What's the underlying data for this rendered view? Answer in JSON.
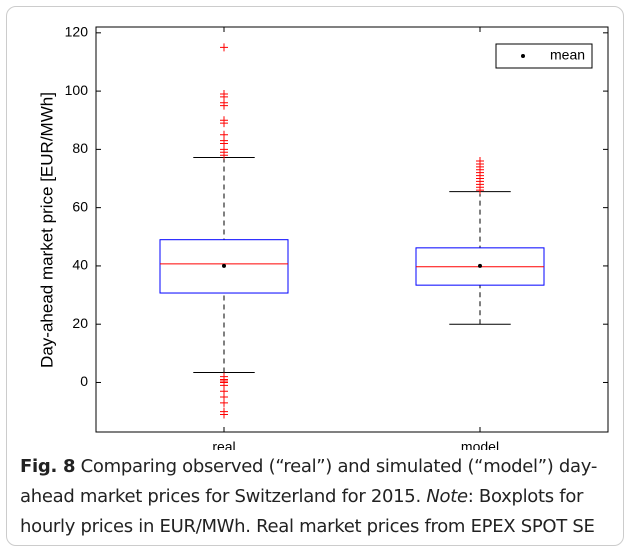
{
  "chart_data": {
    "type": "box",
    "ylabel": "Day-ahead market price [EUR/MWh]",
    "categories": [
      "real",
      "model"
    ],
    "boxes": [
      {
        "whisker_low": 3.4,
        "q1": 30.7,
        "median": 40.7,
        "q3": 49,
        "whisker_high": 77.2,
        "mean": 40,
        "outliers": [
          115,
          99,
          98,
          96,
          95,
          90,
          89,
          85,
          83,
          82,
          80,
          79,
          78,
          2,
          1,
          0.5,
          0,
          -1,
          -3,
          -5,
          -7,
          -10,
          -11
        ]
      },
      {
        "whisker_low": 20,
        "q1": 33.4,
        "median": 39.7,
        "q3": 46.2,
        "whisker_high": 65.5,
        "mean": 40,
        "outliers": [
          66,
          67,
          68,
          69,
          70,
          71,
          72,
          73,
          74,
          75,
          76
        ]
      }
    ],
    "box_color": "#0000ff",
    "median_color": "#ff0000",
    "outlier_color": "#ff0000",
    "whisker_color": "#000000",
    "ylim": [
      -17,
      122
    ],
    "yticks": [
      0,
      20,
      40,
      60,
      80,
      100,
      120
    ],
    "legend": {
      "label": "mean",
      "position": "upper right"
    }
  },
  "caption": {
    "label": "Fig. 8",
    "text": " Comparing observed (“real”) and simulated (“model”) day-ahead market prices for Switzerland for 2015. ",
    "note_label": "Note",
    "note_text": ": Boxplots for hourly prices in EUR/MWh. Real market prices from EPEX SPOT SE"
  }
}
